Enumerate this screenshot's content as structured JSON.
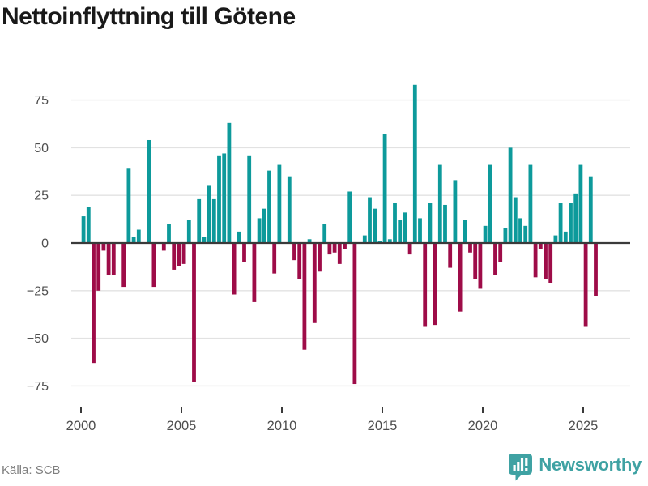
{
  "title": "Nettoinflyttning till Götene",
  "source": {
    "label": "Källa: SCB"
  },
  "brand": {
    "name": "Newsworthy",
    "color": "#3fa2a3"
  },
  "colors": {
    "positive_bar": "#0d9a9b",
    "negative_bar": "#9e0c48",
    "gridline": "#e2e2e2",
    "zero_line": "#3a3a3a",
    "axis_text": "#4e4e4e",
    "title_text": "#191919",
    "source_text": "#7f7f7f"
  },
  "chart_data": {
    "type": "bar",
    "title": "Nettoinflyttning till Götene",
    "xlabel": "",
    "ylabel": "",
    "x_unit": "quarter",
    "grid": true,
    "legend": false,
    "ylim": [
      -83,
      87
    ],
    "yticks": [
      75,
      50,
      25,
      0,
      -25,
      -50,
      -75
    ],
    "ytick_labels": [
      "75",
      "50",
      "25",
      "0",
      "−25",
      "−50",
      "−75"
    ],
    "xticks": [
      2000,
      2005,
      2010,
      2015,
      2020,
      2025
    ],
    "xtick_labels": [
      "2000",
      "2005",
      "2010",
      "2015",
      "2020",
      "2025"
    ],
    "categories": [
      "2000 Q1",
      "2000 Q2",
      "2000 Q3",
      "2000 Q4",
      "2001 Q1",
      "2001 Q2",
      "2001 Q3",
      "2001 Q4",
      "2002 Q1",
      "2002 Q2",
      "2002 Q3",
      "2002 Q4",
      "2003 Q1",
      "2003 Q2",
      "2003 Q3",
      "2003 Q4",
      "2004 Q1",
      "2004 Q2",
      "2004 Q3",
      "2004 Q4",
      "2005 Q1",
      "2005 Q2",
      "2005 Q3",
      "2005 Q4",
      "2006 Q1",
      "2006 Q2",
      "2006 Q3",
      "2006 Q4",
      "2007 Q1",
      "2007 Q2",
      "2007 Q3",
      "2007 Q4",
      "2008 Q1",
      "2008 Q2",
      "2008 Q3",
      "2008 Q4",
      "2009 Q1",
      "2009 Q2",
      "2009 Q3",
      "2009 Q4",
      "2010 Q1",
      "2010 Q2",
      "2010 Q3",
      "2010 Q4",
      "2011 Q1",
      "2011 Q2",
      "2011 Q3",
      "2011 Q4",
      "2012 Q1",
      "2012 Q2",
      "2012 Q3",
      "2012 Q4",
      "2013 Q1",
      "2013 Q2",
      "2013 Q3",
      "2013 Q4",
      "2014 Q1",
      "2014 Q2",
      "2014 Q3",
      "2014 Q4",
      "2015 Q1",
      "2015 Q2",
      "2015 Q3",
      "2015 Q4",
      "2016 Q1",
      "2016 Q2",
      "2016 Q3",
      "2016 Q4",
      "2017 Q1",
      "2017 Q2",
      "2017 Q3",
      "2017 Q4",
      "2018 Q1",
      "2018 Q2",
      "2018 Q3",
      "2018 Q4",
      "2019 Q1",
      "2019 Q2",
      "2019 Q3",
      "2019 Q4",
      "2020 Q1",
      "2020 Q2",
      "2020 Q3",
      "2020 Q4",
      "2021 Q1",
      "2021 Q2",
      "2021 Q3",
      "2021 Q4",
      "2022 Q1",
      "2022 Q2",
      "2022 Q3",
      "2022 Q4",
      "2023 Q1",
      "2023 Q2",
      "2023 Q3",
      "2023 Q4",
      "2024 Q1",
      "2024 Q2",
      "2024 Q3",
      "2024 Q4",
      "2025 Q1",
      "2025 Q2",
      "2025 Q3"
    ],
    "values": [
      14,
      19,
      -63,
      -25,
      -4,
      -17,
      -17,
      0,
      -23,
      39,
      3,
      7,
      0,
      54,
      -23,
      0,
      -4,
      10,
      -14,
      -12,
      -11,
      12,
      -73,
      23,
      3,
      30,
      23,
      46,
      47,
      63,
      -27,
      6,
      -10,
      46,
      -31,
      13,
      18,
      38,
      -16,
      41,
      0,
      35,
      -9,
      -19,
      -56,
      2,
      -42,
      -15,
      10,
      -6,
      -5,
      -11,
      -3,
      27,
      -74,
      0,
      4,
      24,
      18,
      1,
      57,
      2,
      21,
      12,
      16,
      -6,
      83,
      13,
      -44,
      21,
      -43,
      41,
      20,
      -13,
      33,
      -36,
      12,
      -5,
      -19,
      -24,
      9,
      41,
      -17,
      -10,
      8,
      50,
      24,
      13,
      9,
      41,
      -18,
      -3,
      -19,
      -21,
      4,
      21,
      6,
      21,
      26,
      41,
      -44,
      35,
      -28
    ]
  }
}
